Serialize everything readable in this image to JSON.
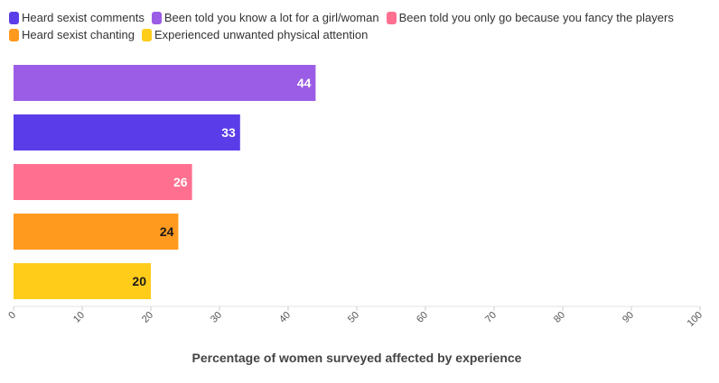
{
  "chart_data": {
    "type": "bar",
    "orientation": "horizontal",
    "categories": [
      "Been told you know a lot for a girl/woman",
      "Heard sexist comments",
      "Been told you only go because you fancy the players",
      "Heard sexist chanting",
      "Experienced unwanted physical attention"
    ],
    "values": [
      44,
      33,
      26,
      24,
      20
    ],
    "colors": [
      "#9b5de5",
      "#5a3de8",
      "#ff7090",
      "#ff9a1f",
      "#ffcc1a"
    ],
    "label_colors": [
      "#ffffff",
      "#ffffff",
      "#ffffff",
      "#1a1a1a",
      "#1a1a1a"
    ],
    "xlabel": "Percentage of women surveyed affected by experience",
    "xlim": [
      0,
      100
    ],
    "xticks": [
      "0",
      "10",
      "20",
      "30",
      "40",
      "50",
      "60",
      "70",
      "80",
      "90",
      "100"
    ],
    "grid": false,
    "legend_position": "top-left"
  },
  "legend": {
    "rows": [
      [
        {
          "label": "Heard sexist comments",
          "color": "#5a3de8"
        },
        {
          "label": "Been told you know a lot for a girl/woman",
          "color": "#9b5de5"
        },
        {
          "label": "Been told you only go because you fancy the players",
          "color": "#ff7090"
        }
      ],
      [
        {
          "label": "Heard sexist chanting",
          "color": "#ff9a1f"
        },
        {
          "label": "Experienced unwanted physical attention",
          "color": "#ffcc1a"
        }
      ]
    ]
  }
}
